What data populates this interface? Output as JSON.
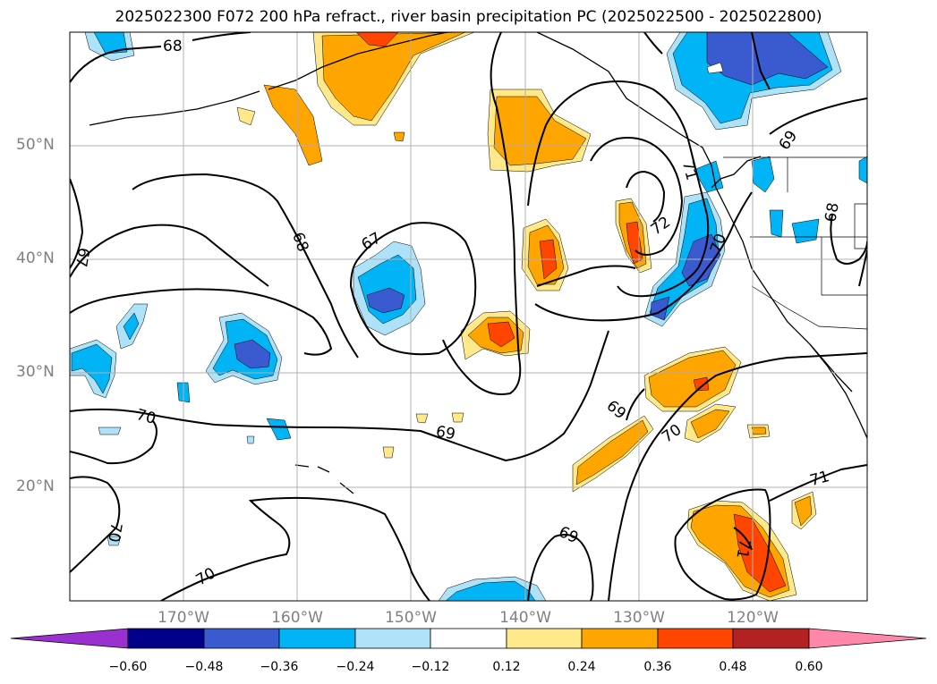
{
  "title": "2025022300 F072 200 hPa refract., river basin precipitation PC (2025022500 - 2025022800)",
  "lat_labels": [
    "50°N",
    "40°N",
    "30°N",
    "20°N"
  ],
  "lon_labels": [
    "170°W",
    "160°W",
    "150°W",
    "140°W",
    "130°W",
    "120°W"
  ],
  "colorbar": {
    "ticks": [
      "−0.60",
      "−0.48",
      "−0.36",
      "−0.24",
      "−0.12",
      "0.12",
      "0.24",
      "0.36",
      "0.48",
      "0.60"
    ],
    "colors": [
      "#9b30d0",
      "#00008b",
      "#3a5bd0",
      "#00b4f5",
      "#aee2f8",
      "#ffffff",
      "#ffe98a",
      "#ffa500",
      "#ff4500",
      "#b22222",
      "#ff88aa"
    ]
  },
  "contour_labels": [
    "68",
    "67",
    "68",
    "67",
    "69",
    "69",
    "71",
    "72",
    "70",
    "69",
    "70",
    "70",
    "71",
    "69",
    "70",
    "71",
    "70",
    "68"
  ]
}
